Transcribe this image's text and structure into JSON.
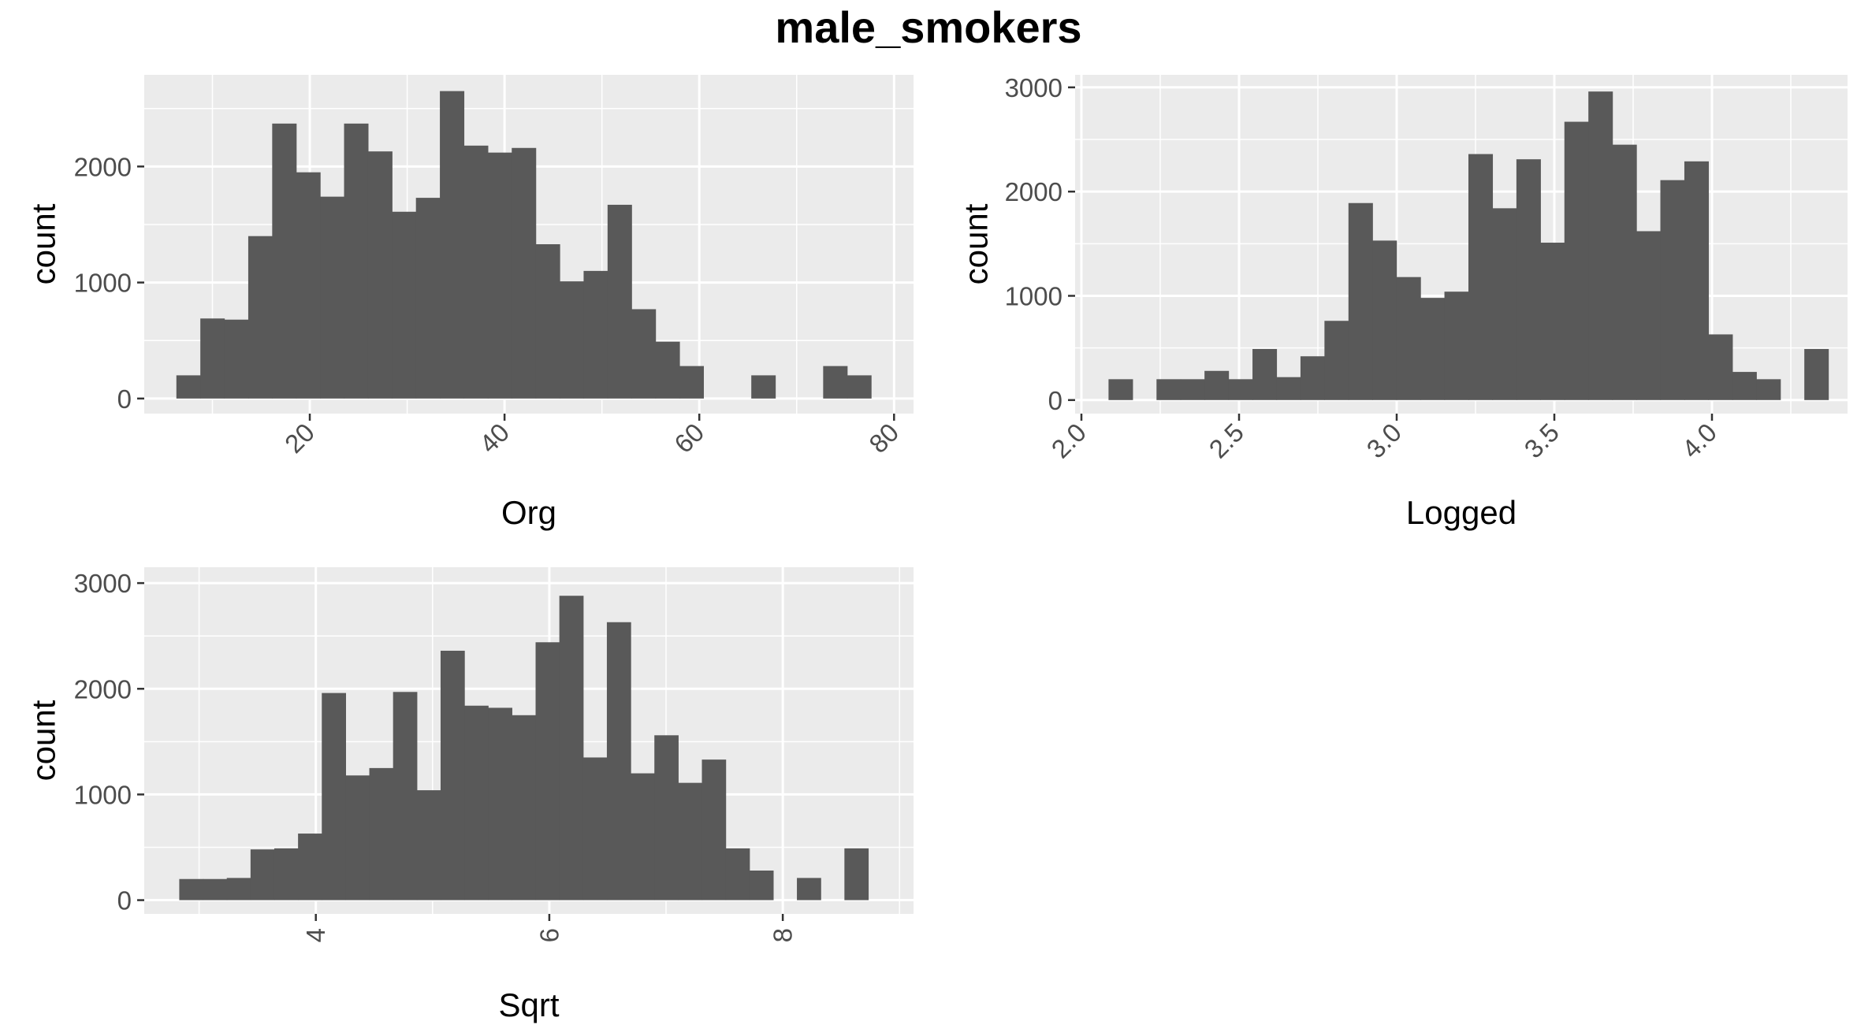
{
  "title": "male_smokers",
  "colors": {
    "panel_bg": "#ebebeb",
    "grid": "#ffffff",
    "bar": "#595959",
    "tick_text": "#4d4d4d",
    "text": "#000000"
  },
  "chart_data": [
    {
      "type": "bar",
      "subtype": "histogram",
      "xlabel": "Org",
      "ylabel": "count",
      "xlim": [
        3,
        82
      ],
      "ylim": [
        -130,
        2790
      ],
      "x_ticks": [
        20,
        40,
        60,
        80
      ],
      "y_ticks": [
        0,
        1000,
        2000
      ],
      "x_tick_rotation": -45,
      "grid": true,
      "bin_width": 2.46,
      "bins_start": 6.3,
      "values": [
        200,
        690,
        680,
        1400,
        2370,
        1950,
        1740,
        2370,
        2130,
        1610,
        1730,
        2650,
        2180,
        2120,
        2160,
        1330,
        1010,
        1100,
        1670,
        770,
        490,
        280,
        0,
        0,
        200,
        0,
        0,
        280,
        200
      ]
    },
    {
      "type": "bar",
      "subtype": "histogram",
      "xlabel": "Logged",
      "ylabel": "count",
      "xlim": [
        1.98,
        4.43
      ],
      "ylim": [
        -130,
        3120
      ],
      "x_ticks": [
        2.0,
        2.5,
        3.0,
        3.5,
        4.0
      ],
      "y_ticks": [
        0,
        1000,
        2000,
        3000
      ],
      "x_tick_rotation": -45,
      "grid": true,
      "bin_width": 0.0761,
      "bins_start": 2.086,
      "values": [
        200,
        0,
        200,
        200,
        280,
        200,
        490,
        220,
        420,
        760,
        1890,
        1530,
        1180,
        980,
        1040,
        2360,
        1840,
        2310,
        1510,
        2670,
        2960,
        2450,
        1620,
        2110,
        2290,
        630,
        270,
        200,
        0,
        490
      ]
    },
    {
      "type": "bar",
      "subtype": "histogram",
      "xlabel": "Sqrt",
      "ylabel": "count",
      "xlim": [
        2.53,
        9.12
      ],
      "ylim": [
        -130,
        3150
      ],
      "x_ticks": [
        4,
        6,
        8
      ],
      "y_ticks": [
        0,
        1000,
        2000,
        3000
      ],
      "x_tick_rotation": -90,
      "grid": true,
      "bin_width": 0.2035,
      "bins_start": 2.83,
      "values": [
        200,
        200,
        210,
        480,
        490,
        630,
        1960,
        1180,
        1250,
        1970,
        1040,
        2360,
        1840,
        1820,
        1750,
        2440,
        2880,
        1350,
        2630,
        1200,
        1560,
        1110,
        1330,
        490,
        280,
        0,
        210,
        0,
        490
      ]
    }
  ]
}
